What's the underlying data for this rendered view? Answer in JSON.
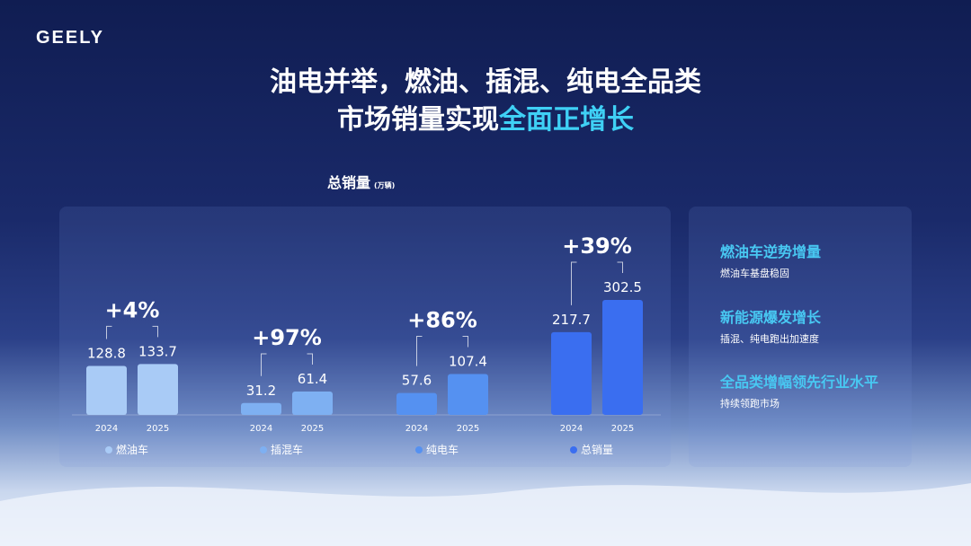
{
  "logo": "GEELY",
  "title": {
    "line1": "油电并举，燃油、插混、纯电全品类",
    "line2_plain": "市场销量实现",
    "line2_highlight": "全面正增长"
  },
  "side": [
    {
      "heading": "燃油车逆势增量",
      "sub": "燃油车基盘稳固"
    },
    {
      "heading": "新能源爆发增长",
      "sub": "插混、纯电跑出加速度"
    },
    {
      "heading": "全品类增幅领先行业水平",
      "sub": "持续领跑市场"
    }
  ],
  "chart_data": {
    "type": "bar",
    "title": "总销量",
    "unit": "(万辆)",
    "x_labels": [
      "2024",
      "2025"
    ],
    "groups": [
      {
        "name": "燃油车",
        "values": [
          128.8,
          133.7
        ],
        "growth": "+4%",
        "color": "#a9cbf6"
      },
      {
        "name": "插混车",
        "values": [
          31.2,
          61.4
        ],
        "growth": "+97%",
        "color": "#7eb0f2"
      },
      {
        "name": "纯电车",
        "values": [
          57.6,
          107.4
        ],
        "growth": "+86%",
        "color": "#5591f1"
      },
      {
        "name": "总销量",
        "values": [
          217.7,
          302.5
        ],
        "growth": "+39%",
        "color": "#3a6ef0"
      }
    ],
    "legend_placement": "bottom",
    "grid": false,
    "ylim": [
      0,
      302.5
    ]
  }
}
